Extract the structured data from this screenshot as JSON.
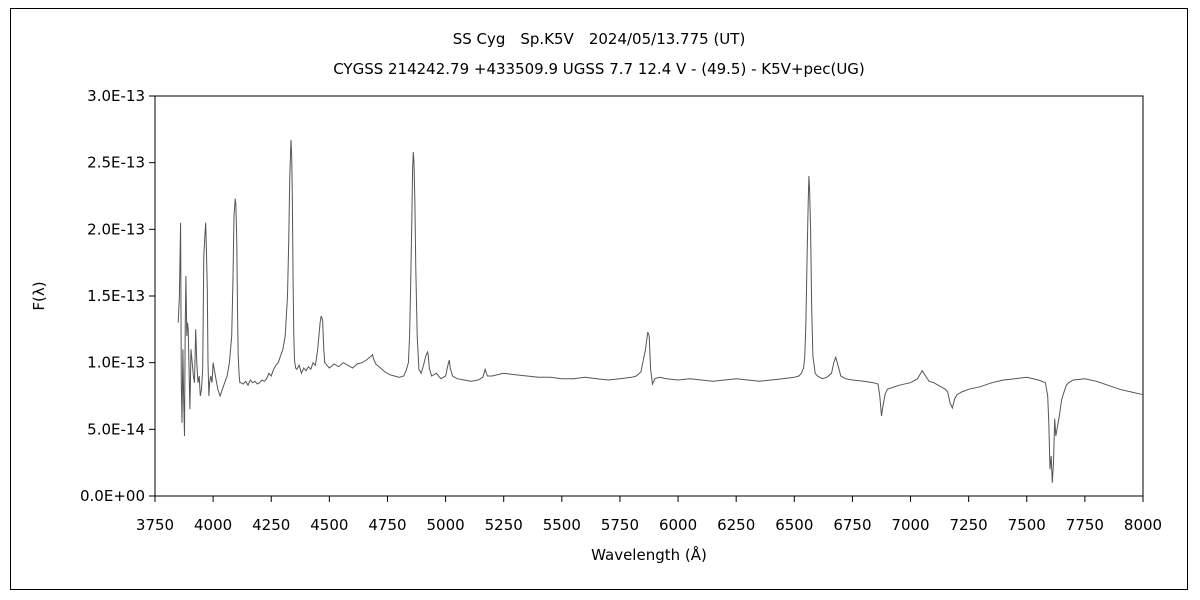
{
  "chart_data": {
    "type": "line",
    "title": "SS Cyg　Sp.K5V　2024/05/13.775 (UT)",
    "subtitle": "CYGSS 214242.79 +433509.9 UGSS 7.7 12.4 V - (49.5) - K5V+pec(UG)",
    "xlabel": "Wavelength (Å)",
    "ylabel": "F(λ)",
    "xlim": [
      3750,
      8000
    ],
    "ylim": [
      0,
      3e-13
    ],
    "xticks": [
      "3750",
      "4000",
      "4250",
      "4500",
      "4750",
      "5000",
      "5250",
      "5500",
      "5750",
      "6000",
      "6250",
      "6500",
      "6750",
      "7000",
      "7250",
      "7500",
      "7750",
      "8000"
    ],
    "yticks": [
      "0.0E+00",
      "5.0E-14",
      "1.0E-13",
      "1.5E-13",
      "2.0E-13",
      "2.5E-13",
      "3.0E-13"
    ],
    "grid": false,
    "line_color": "#555555",
    "series": [
      {
        "x": [
          3850,
          3855,
          3860,
          3863,
          3866,
          3870,
          3873,
          3877,
          3880,
          3883,
          3887,
          3890,
          3893,
          3897,
          3900,
          3905,
          3910,
          3915,
          3920,
          3925,
          3930,
          3935,
          3940,
          3945,
          3950,
          3955,
          3960,
          3965,
          3968,
          3971,
          3975,
          3978,
          3982,
          3985,
          3990,
          3995,
          4000,
          4010,
          4020,
          4030,
          4040,
          4050,
          4060,
          4070,
          4080,
          4085,
          4090,
          4095,
          4098,
          4102,
          4105,
          4108,
          4112,
          4115,
          4120,
          4130,
          4140,
          4150,
          4160,
          4170,
          4180,
          4190,
          4200,
          4210,
          4220,
          4230,
          4240,
          4250,
          4260,
          4270,
          4280,
          4290,
          4300,
          4310,
          4320,
          4325,
          4330,
          4335,
          4338,
          4341,
          4344,
          4347,
          4350,
          4355,
          4360,
          4370,
          4380,
          4390,
          4400,
          4410,
          4420,
          4430,
          4440,
          4450,
          4460,
          4465,
          4471,
          4476,
          4480,
          4490,
          4500,
          4520,
          4540,
          4560,
          4580,
          4600,
          4620,
          4640,
          4660,
          4680,
          4686,
          4690,
          4700,
          4720,
          4740,
          4760,
          4780,
          4800,
          4820,
          4830,
          4840,
          4845,
          4850,
          4855,
          4858,
          4861,
          4864,
          4868,
          4872,
          4878,
          4885,
          4895,
          4905,
          4915,
          4922,
          4925,
          4930,
          4940,
          4960,
          4980,
          5000,
          5010,
          5016,
          5020,
          5030,
          5050,
          5080,
          5110,
          5140,
          5160,
          5170,
          5180,
          5200,
          5250,
          5300,
          5350,
          5400,
          5450,
          5500,
          5550,
          5600,
          5650,
          5700,
          5750,
          5800,
          5820,
          5840,
          5860,
          5870,
          5876,
          5882,
          5890,
          5900,
          5920,
          5950,
          6000,
          6050,
          6100,
          6150,
          6200,
          6250,
          6300,
          6350,
          6400,
          6450,
          6500,
          6520,
          6530,
          6540,
          6545,
          6550,
          6555,
          6560,
          6563,
          6566,
          6570,
          6575,
          6580,
          6590,
          6600,
          6620,
          6640,
          6660,
          6670,
          6678,
          6685,
          6700,
          6720,
          6750,
          6800,
          6840,
          6860,
          6868,
          6875,
          6880,
          6890,
          6900,
          6950,
          7000,
          7030,
          7050,
          7065,
          7080,
          7100,
          7130,
          7150,
          7160,
          7170,
          7180,
          7190,
          7200,
          7220,
          7250,
          7300,
          7350,
          7400,
          7450,
          7500,
          7550,
          7580,
          7590,
          7595,
          7600,
          7605,
          7610,
          7615,
          7620,
          7625,
          7630,
          7640,
          7650,
          7660,
          7670,
          7680,
          7700,
          7750,
          7800,
          7850,
          7900,
          7950,
          8000
        ],
        "y": [
          1.3e-13,
          1.5e-13,
          2.05e-13,
          8.5e-14,
          5.5e-14,
          1.1e-13,
          7.5e-14,
          4.5e-14,
          1.25e-13,
          1.65e-13,
          1.2e-13,
          1.3e-13,
          1.25e-13,
          9e-14,
          6.5e-14,
          1.1e-13,
          1e-13,
          9e-14,
          8.5e-14,
          1.25e-13,
          1e-13,
          8.5e-14,
          9e-14,
          7.5e-14,
          8e-14,
          9.5e-14,
          1.8e-13,
          1.97e-13,
          2.05e-13,
          1.85e-13,
          1.55e-13,
          1e-13,
          7.5e-14,
          8.5e-14,
          9e-14,
          8.5e-14,
          1e-13,
          9e-14,
          8e-14,
          7.5e-14,
          8e-14,
          8.5e-14,
          9e-14,
          1e-13,
          1.2e-13,
          1.6e-13,
          2.1e-13,
          2.23e-13,
          2.18e-13,
          1.9e-13,
          1.4e-13,
          1.05e-13,
          9e-14,
          8.5e-14,
          8.5e-14,
          8.4e-14,
          8.6e-14,
          8.3e-14,
          8.7e-14,
          8.5e-14,
          8.6e-14,
          8.4e-14,
          8.5e-14,
          8.7e-14,
          8.6e-14,
          8.8e-14,
          9.2e-14,
          9e-14,
          9.5e-14,
          9.8e-14,
          1e-13,
          1.05e-13,
          1.1e-13,
          1.2e-13,
          1.5e-13,
          1.9e-13,
          2.4e-13,
          2.67e-13,
          2.55e-13,
          2.2e-13,
          1.6e-13,
          1.2e-13,
          1.02e-13,
          9.6e-14,
          9.5e-14,
          9.8e-14,
          9.2e-14,
          9.6e-14,
          9.4e-14,
          9.7e-14,
          9.5e-14,
          1e-13,
          9.8e-14,
          1.1e-13,
          1.3e-13,
          1.35e-13,
          1.32e-13,
          1.1e-13,
          1e-13,
          9.8e-14,
          9.6e-14,
          9.9e-14,
          9.7e-14,
          1e-13,
          9.8e-14,
          9.6e-14,
          9.9e-14,
          1e-13,
          1.02e-13,
          1.05e-13,
          1.06e-13,
          1.03e-13,
          9.9e-14,
          9.6e-14,
          9.3e-14,
          9.1e-14,
          9e-14,
          8.9e-14,
          9e-14,
          9.4e-14,
          1e-13,
          1.2e-13,
          1.6e-13,
          2.1e-13,
          2.45e-13,
          2.58e-13,
          2.5e-13,
          2.2e-13,
          1.7e-13,
          1.2e-13,
          9.5e-14,
          9.2e-14,
          9.8e-14,
          1.05e-13,
          1.08e-13,
          1.06e-13,
          9.6e-14,
          9e-14,
          9.2e-14,
          8.8e-14,
          9e-14,
          9.8e-14,
          1.02e-13,
          9.6e-14,
          9e-14,
          8.8e-14,
          8.7e-14,
          8.6e-14,
          8.7e-14,
          8.9e-14,
          9.5e-14,
          9e-14,
          9e-14,
          9.2e-14,
          9.1e-14,
          9e-14,
          8.9e-14,
          8.9e-14,
          8.8e-14,
          8.8e-14,
          8.9e-14,
          8.8e-14,
          8.7e-14,
          8.8e-14,
          8.9e-14,
          9e-14,
          9.3e-14,
          1.1e-13,
          1.23e-13,
          1.2e-13,
          9.5e-14,
          8.4e-14,
          8.8e-14,
          8.9e-14,
          8.8e-14,
          8.7e-14,
          8.8e-14,
          8.7e-14,
          8.6e-14,
          8.7e-14,
          8.8e-14,
          8.7e-14,
          8.6e-14,
          8.7e-14,
          8.8e-14,
          8.9e-14,
          9e-14,
          9.2e-14,
          9.6e-14,
          1.05e-13,
          1.3e-13,
          1.8e-13,
          2.2e-13,
          2.4e-13,
          2.3e-13,
          2e-13,
          1.4e-13,
          1.05e-13,
          9.2e-14,
          9e-14,
          8.8e-14,
          8.9e-14,
          9.2e-14,
          1e-13,
          1.04e-13,
          1e-13,
          9e-14,
          8.8e-14,
          8.7e-14,
          8.6e-14,
          8.5e-14,
          8.4e-14,
          7.5e-14,
          6e-14,
          6.6e-14,
          7.6e-14,
          8e-14,
          8.3e-14,
          8.5e-14,
          8.8e-14,
          9.4e-14,
          9e-14,
          8.6e-14,
          8.5e-14,
          8.2e-14,
          8e-14,
          7.8e-14,
          7e-14,
          6.6e-14,
          7.3e-14,
          7.6e-14,
          7.8e-14,
          8e-14,
          8.2e-14,
          8.5e-14,
          8.7e-14,
          8.8e-14,
          8.9e-14,
          8.7e-14,
          8.5e-14,
          7.5e-14,
          5.5e-14,
          2e-14,
          3e-14,
          1e-14,
          2.5e-14,
          5.8e-14,
          4.5e-14,
          5e-14,
          6e-14,
          7.2e-14,
          7.8e-14,
          8.3e-14,
          8.5e-14,
          8.7e-14,
          8.8e-14,
          8.6e-14,
          8.3e-14,
          8e-14,
          7.8e-14,
          7.6e-14
        ]
      }
    ]
  }
}
